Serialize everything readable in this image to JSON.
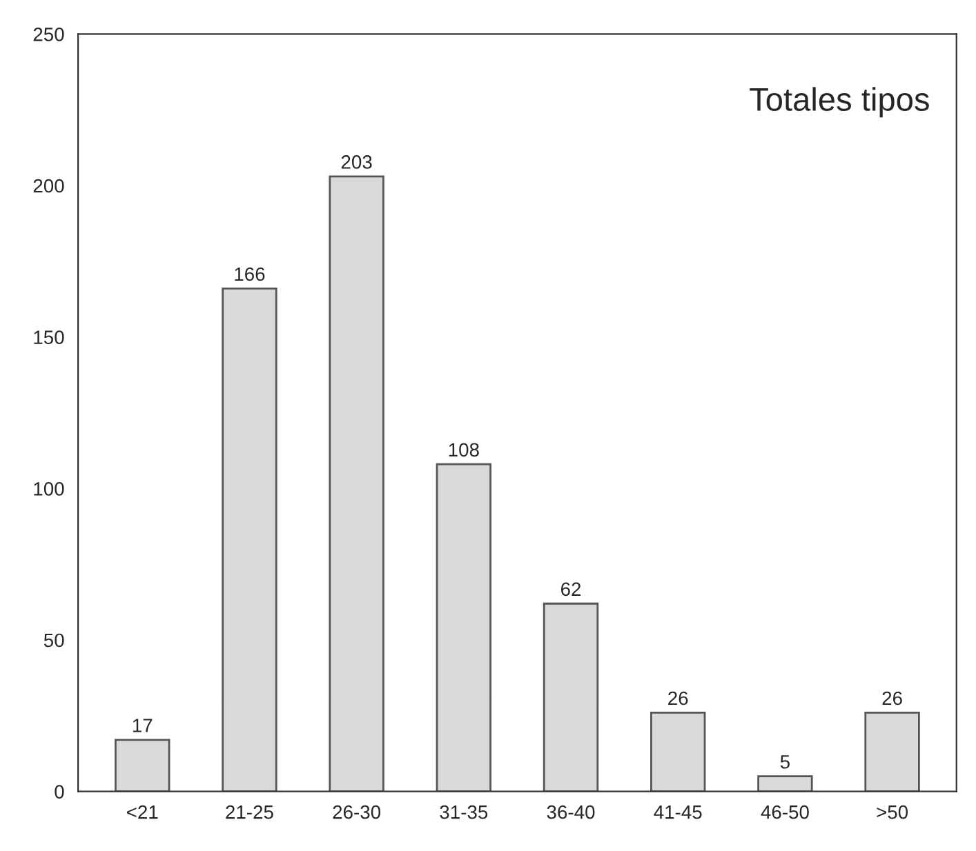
{
  "chart_data": {
    "type": "bar",
    "title": "Totales tipos",
    "categories": [
      "<21",
      "21-25",
      "26-30",
      "31-35",
      "36-40",
      "41-45",
      "46-50",
      ">50"
    ],
    "values": [
      17,
      166,
      203,
      108,
      62,
      26,
      5,
      26
    ],
    "color": "#d9d9d9",
    "ylim": [
      0,
      250
    ],
    "yticks": [
      0,
      50,
      100,
      150,
      200,
      250
    ],
    "data_labels": true,
    "grid": false,
    "legend": false
  }
}
